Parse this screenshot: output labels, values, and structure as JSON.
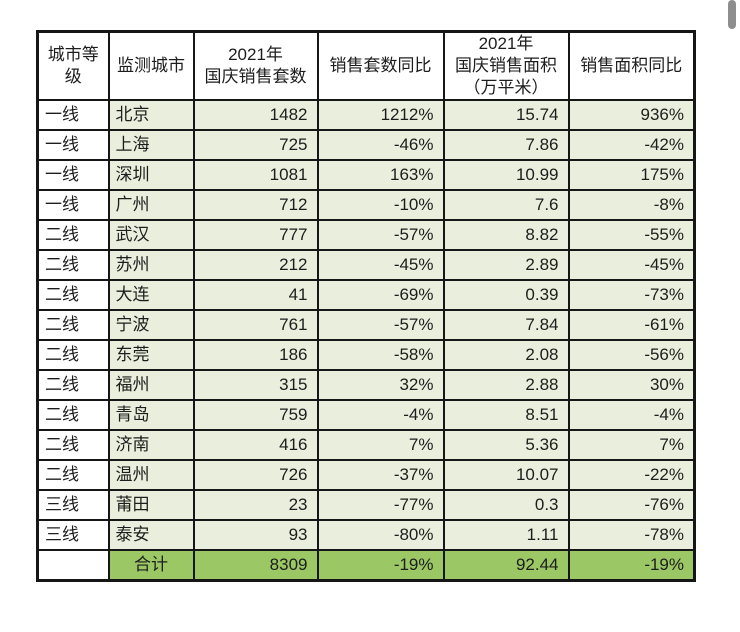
{
  "colors": {
    "cell_green": "#eaeedc",
    "total_green": "#9bc764",
    "border": "#161616",
    "text": "#1d1d1d",
    "scrollbar": "#8e8e8e"
  },
  "chart_data": {
    "type": "table",
    "columns": [
      "城市等级",
      "监测城市",
      "2021年国庆销售套数",
      "销售套数同比",
      "2021年国庆销售面积（万平米）",
      "销售面积同比"
    ],
    "header_display": [
      "城市等\n级",
      "监测城市",
      "2021年\n国庆销售套数",
      "销售套数同比",
      "2021年\n国庆销售面积\n（万平米）",
      "销售面积同比"
    ],
    "rows": [
      [
        "一线",
        "北京",
        "1482",
        "1212%",
        "15.74",
        "936%"
      ],
      [
        "一线",
        "上海",
        "725",
        "-46%",
        "7.86",
        "-42%"
      ],
      [
        "一线",
        "深圳",
        "1081",
        "163%",
        "10.99",
        "175%"
      ],
      [
        "一线",
        "广州",
        "712",
        "-10%",
        "7.6",
        "-8%"
      ],
      [
        "二线",
        "武汉",
        "777",
        "-57%",
        "8.82",
        "-55%"
      ],
      [
        "二线",
        "苏州",
        "212",
        "-45%",
        "2.89",
        "-45%"
      ],
      [
        "二线",
        "大连",
        "41",
        "-69%",
        "0.39",
        "-73%"
      ],
      [
        "二线",
        "宁波",
        "761",
        "-57%",
        "7.84",
        "-61%"
      ],
      [
        "二线",
        "东莞",
        "186",
        "-58%",
        "2.08",
        "-56%"
      ],
      [
        "二线",
        "福州",
        "315",
        "32%",
        "2.88",
        "30%"
      ],
      [
        "二线",
        "青岛",
        "759",
        "-4%",
        "8.51",
        "-4%"
      ],
      [
        "二线",
        "济南",
        "416",
        "7%",
        "5.36",
        "7%"
      ],
      [
        "二线",
        "温州",
        "726",
        "-37%",
        "10.07",
        "-22%"
      ],
      [
        "三线",
        "莆田",
        "23",
        "-77%",
        "0.3",
        "-76%"
      ],
      [
        "三线",
        "泰安",
        "93",
        "-80%",
        "1.11",
        "-78%"
      ]
    ],
    "total_row": [
      "",
      "合计",
      "8309",
      "-19%",
      "92.44",
      "-19%"
    ]
  }
}
